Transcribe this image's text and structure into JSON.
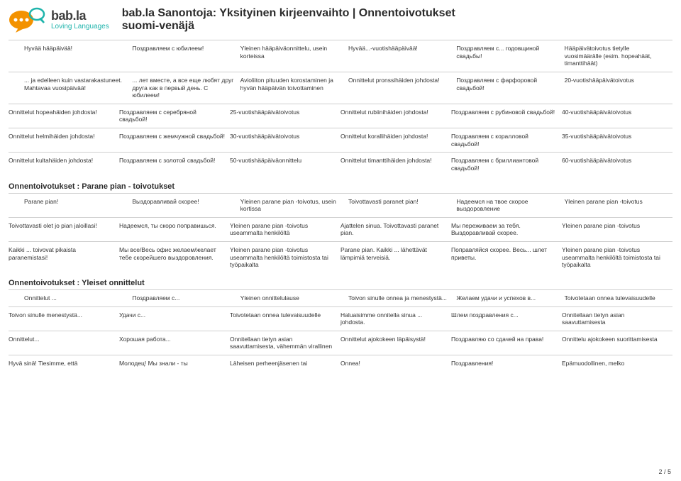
{
  "logo": {
    "brand": "bab.la",
    "tag": "Loving Languages"
  },
  "title": {
    "line1": "bab.la Sanontoja: Yksityinen kirjeenvaihto | Onnentoivotukset",
    "line2": "suomi-venäjä"
  },
  "sections": [
    {
      "header": null,
      "rows": [
        {
          "indent": true,
          "cells": [
            "Hyvää hääpäivää!",
            "Поздравляем с юбилеем!",
            "Yleinen hääpäiväonnittelu, usein korteissa",
            "Hyvää...-vuotishääpäivää!",
            "Поздравляем с... годовщиной свадьбы!",
            "Hääpäivätoivotus tietylle vuosimäärälle (esim. hopeahäät, timanttihäät)"
          ]
        },
        {
          "indent": true,
          "cells": [
            "... ja edelleen kuin vastarakastuneet. Mahtavaa vuosipäivää!",
            "... лет вместе, а все еще любят друг друга как в первый день. С юбилеем!",
            "Avioliiton pituuden korostaminen ja hyvän hääpäivän toivottaminen",
            "Onnittelut pronssihäiden johdosta!",
            "Поздравляем с фарфоровой свадьбой!",
            "20-vuotishääpäivätoivotus"
          ]
        },
        {
          "indent": false,
          "cells": [
            "Onnittelut hopeahäiden johdosta!",
            "Поздравляем с серебряной свадьбой!",
            "25-vuotishääpäivätoivotus",
            "Onnittelut rubiinihäiden johdosta!",
            "Поздравляем с рубиновой свадьбой!",
            "40-vuotishääpäivätoivotus"
          ]
        },
        {
          "indent": false,
          "cells": [
            "Onnittelut helmihäiden johdosta!",
            "Поздравляем с жемчужной свадьбой!",
            "30-vuotishääpäivätoivotus",
            "Onnittelut korallihäiden johdosta!",
            "Поздравляем с коралловой свадьбой!",
            "35-vuotishääpäivätoivotus"
          ]
        },
        {
          "indent": false,
          "cells": [
            "Onnittelut kultahäiden johdosta!",
            "Поздравляем с золотой свадьбой!",
            "50-vuotishääpäiväonnittelu",
            "Onnittelut timanttihäiden johdosta!",
            "Поздравляем с бриллиантовой свадьбой!",
            "60-vuotishääpäivätoivotus"
          ]
        }
      ]
    },
    {
      "header": "Onnentoivotukset : Parane pian - toivotukset",
      "rows": [
        {
          "indent": true,
          "cells": [
            "Parane pian!",
            "Выздоравливай скорее!",
            "Yleinen parane pian -toivotus, usein kortissa",
            "Toivottavasti paranet pian!",
            "Надеемся на твое скорое выздоровление",
            "Yleinen parane pian -toivotus"
          ]
        },
        {
          "indent": false,
          "cells": [
            "Toivottavasti olet jo pian jaloillasi!",
            "Надеемся, ты скоро поправишься.",
            "Yleinen parane pian -toivotus useammalta henkilöltä",
            "Ajattelen sinua. Toivottavasti paranet pian.",
            "Мы переживаем за тебя. Выздоравливай скорее.",
            "Yleinen parane pian -toivotus"
          ]
        },
        {
          "indent": false,
          "cells": [
            "Kaikki ... toivovat pikaista paranemistasi!",
            "Мы все/Весь офис желаем/желает тебе скорейшего выздоровления.",
            "Yleinen parane pian -toivotus useammalta henkilöltä toimistosta tai työpaikalta",
            "Parane pian. Kaikki ... lähettävät lämpimiä terveisiä.",
            "Поправляйся скорее. Весь... шлет приветы.",
            "Yleinen parane pian -toivotus useammalta henkilöltä toimistosta tai työpaikalta"
          ]
        }
      ]
    },
    {
      "header": "Onnentoivotukset : Yleiset onnittelut",
      "rows": [
        {
          "indent": true,
          "cells": [
            "Onnittelut ...",
            "Поздравляем с...",
            "Yleinen onnittelulause",
            "Toivon sinulle onnea ja menestystä...",
            "Желаем удачи и успехов в...",
            "Toivotetaan onnea tulevaisuudelle"
          ]
        },
        {
          "indent": false,
          "cells": [
            "Toivon sinulle menestystä...",
            "Удачи с...",
            "Toivotetaan onnea tulevaisuudelle",
            "Haluaisimme onnitella sinua ... johdosta.",
            "Шлем поздравления с...",
            "Onnitellaan tietyn asian saavuttamisesta"
          ]
        },
        {
          "indent": false,
          "cells": [
            "Onnittelut...",
            "Хорошая работа...",
            "Onnitellaan tietyn asian saavuttamisesta, vähemmän virallinen",
            "Onnittelut ajokokeen läpäisystä!",
            "Поздравляю со сдачей на права!",
            "Onnittelu ajokokeen suorittamisesta"
          ]
        },
        {
          "indent": false,
          "cells": [
            "Hyvä sinä! Tiesimme, että",
            "Молодец! Мы знали - ты",
            "Läheisen perheenjäsenen tai",
            "Onnea!",
            "Поздравления!",
            "Epämuodollinen, melko"
          ]
        }
      ]
    }
  ],
  "pagenum": "2 / 5",
  "colors": {
    "teal": "#1fb4ac",
    "orange": "#f39200",
    "text": "#333333",
    "rule": "#cfcfcf"
  }
}
